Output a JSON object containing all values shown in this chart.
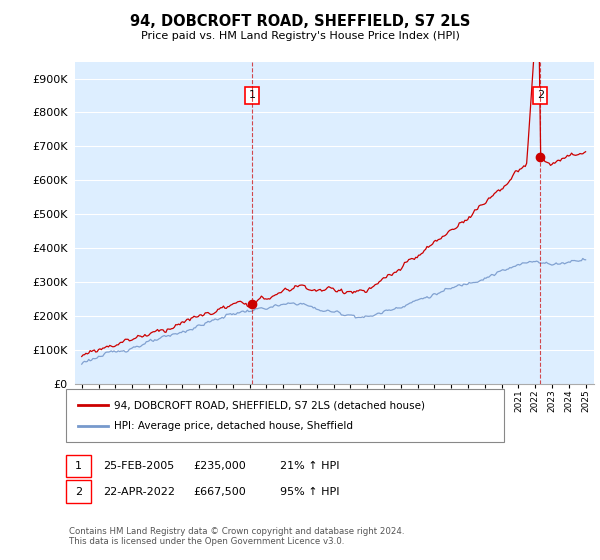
{
  "title": "94, DOBCROFT ROAD, SHEFFIELD, S7 2LS",
  "subtitle": "Price paid vs. HM Land Registry's House Price Index (HPI)",
  "ylabel_ticks": [
    "£0",
    "£100K",
    "£200K",
    "£300K",
    "£400K",
    "£500K",
    "£600K",
    "£700K",
    "£800K",
    "£900K"
  ],
  "ytick_values": [
    0,
    100000,
    200000,
    300000,
    400000,
    500000,
    600000,
    700000,
    800000,
    900000
  ],
  "ylim": [
    0,
    950000
  ],
  "xlim_start": 1994.6,
  "xlim_end": 2025.5,
  "sale1_year": 2005.15,
  "sale1_price": 235000,
  "sale1_label": "1",
  "sale1_date": "25-FEB-2005",
  "sale1_amount": "£235,000",
  "sale1_pct": "21% ↑ HPI",
  "sale2_year": 2022.3,
  "sale2_price": 667500,
  "sale2_label": "2",
  "sale2_date": "22-APR-2022",
  "sale2_amount": "£667,500",
  "sale2_pct": "95% ↑ HPI",
  "line_red_color": "#cc0000",
  "line_blue_color": "#7799cc",
  "chart_bg_color": "#ddeeff",
  "grid_color": "#ffffff",
  "background_color": "#ffffff",
  "legend_label_red": "94, DOBCROFT ROAD, SHEFFIELD, S7 2LS (detached house)",
  "legend_label_blue": "HPI: Average price, detached house, Sheffield",
  "footer": "Contains HM Land Registry data © Crown copyright and database right 2024.\nThis data is licensed under the Open Government Licence v3.0."
}
